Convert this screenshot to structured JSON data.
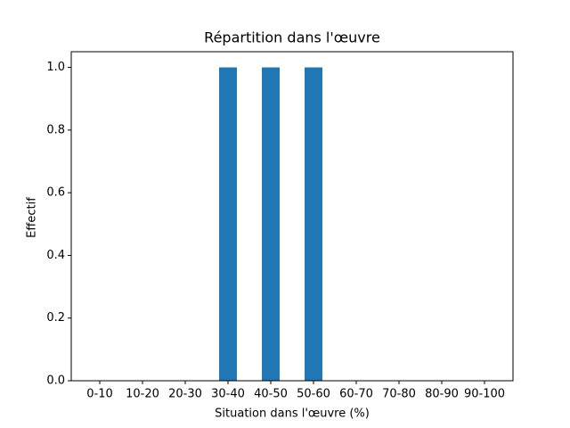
{
  "chart_data": {
    "type": "bar",
    "title": "Répartition dans l'œuvre",
    "x_label": "Situation dans l'œuvre (%)",
    "y_label": "Effectif",
    "categories": [
      "0-10",
      "10-20",
      "20-30",
      "30-40",
      "40-50",
      "50-60",
      "60-70",
      "70-80",
      "80-90",
      "90-100"
    ],
    "values": [
      0,
      0,
      0,
      1,
      1,
      1,
      0,
      0,
      0,
      0
    ],
    "color": "#1f77b4",
    "ylim": [
      0,
      1.05
    ],
    "yticks": [
      {
        "value": 0,
        "label": "0.0"
      },
      0.2,
      0.4,
      0.6,
      0.8,
      {
        "value": 1,
        "label": "1.0"
      }
    ],
    "grid": false
  }
}
